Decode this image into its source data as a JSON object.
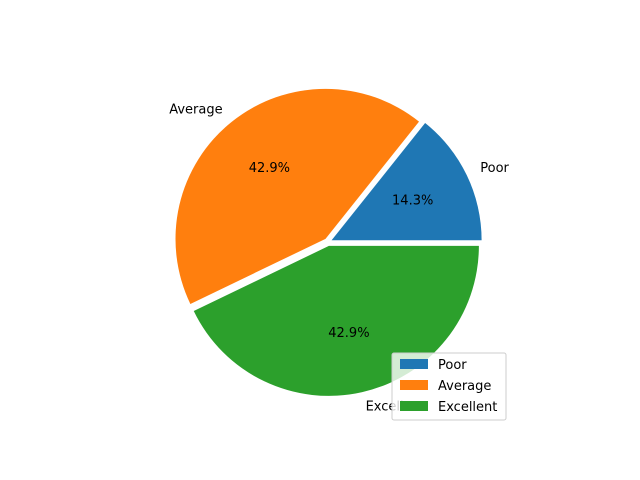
{
  "chart_data": {
    "type": "pie",
    "title": "",
    "categories": [
      "Poor",
      "Average",
      "Excellent"
    ],
    "values": [
      14.3,
      42.9,
      42.9
    ],
    "percent_labels": [
      "14.3%",
      "42.9%",
      "42.9%"
    ],
    "colors": [
      "#1f77b4",
      "#ff7f0e",
      "#2ca02c"
    ],
    "start_angle_deg": 0,
    "direction": "counterclockwise",
    "exploded": true,
    "legend": {
      "placement": "lower-right",
      "entries": [
        "Poor",
        "Average",
        "Excellent"
      ]
    }
  }
}
